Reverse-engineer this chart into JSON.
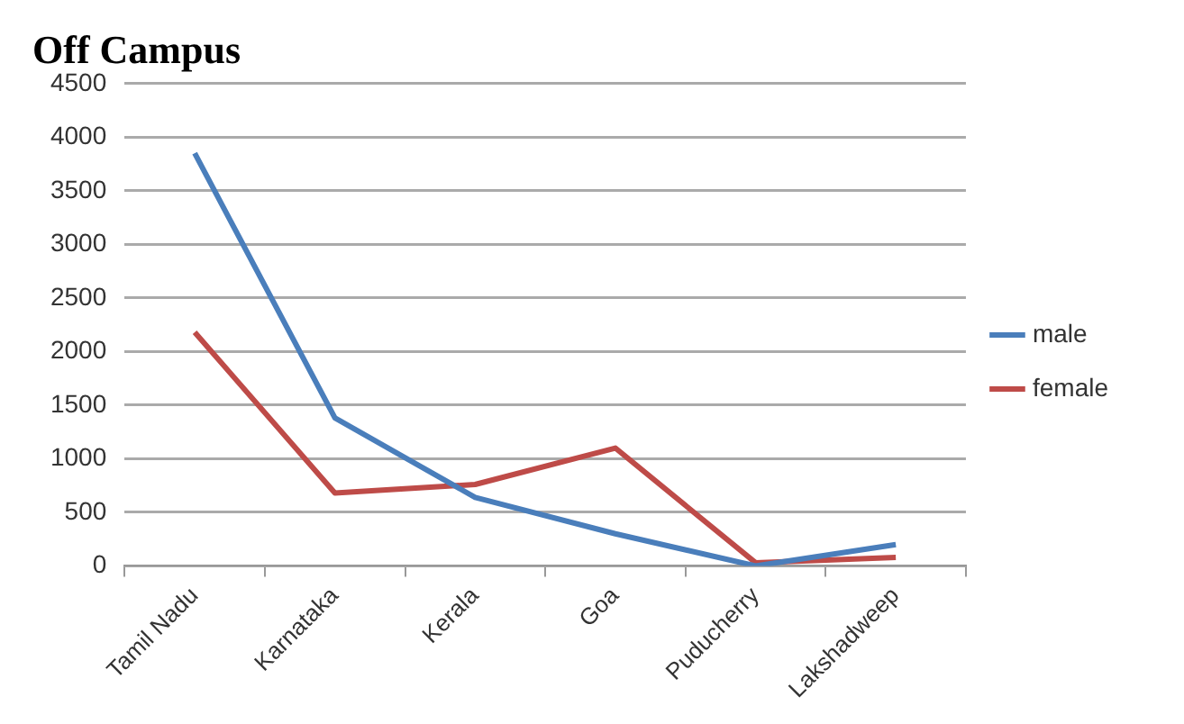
{
  "chart_data": {
    "type": "line",
    "title": "Off Campus",
    "categories": [
      "Tamil Nadu",
      "Karnataka",
      "Kerala",
      "Goa",
      "Puducherry",
      "Lakshadweep"
    ],
    "series": [
      {
        "name": "male",
        "color": "#4a7ebb",
        "values": [
          3850,
          1380,
          640,
          300,
          0,
          200
        ]
      },
      {
        "name": "female",
        "color": "#be4b48",
        "values": [
          2180,
          680,
          760,
          1100,
          30,
          80
        ]
      }
    ],
    "ylim": [
      0,
      4500
    ],
    "yticks": [
      0,
      500,
      1000,
      1500,
      2000,
      2500,
      3000,
      3500,
      4000,
      4500
    ],
    "grid": "y",
    "legend": "right",
    "marker": "none",
    "line_style": "solid"
  }
}
